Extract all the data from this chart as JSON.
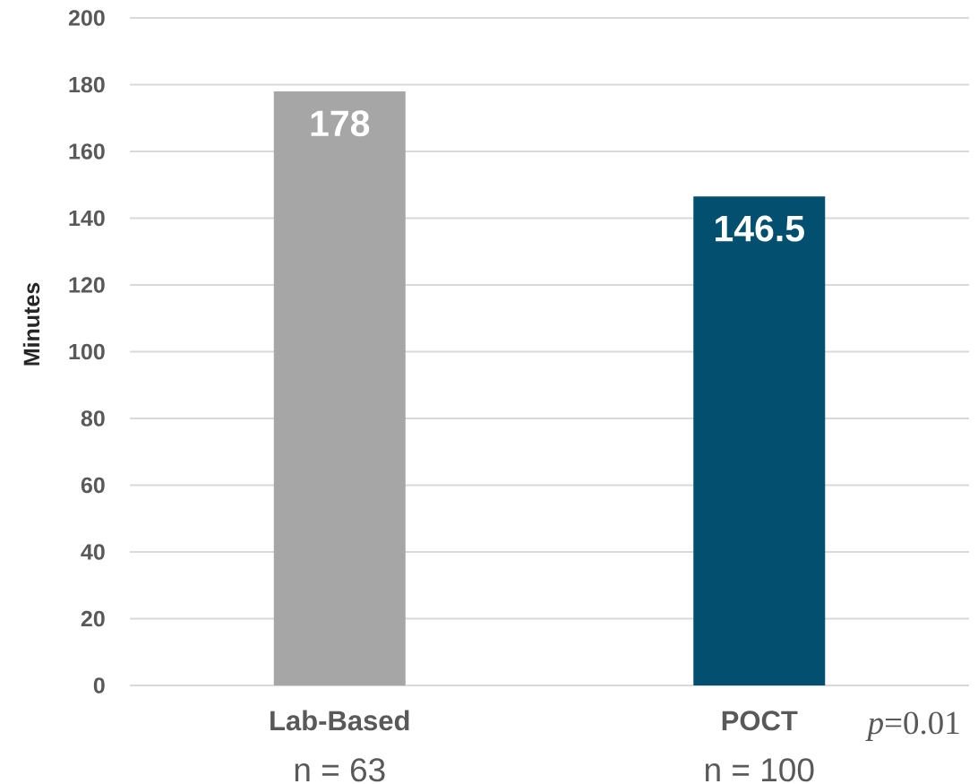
{
  "chart_data": {
    "type": "bar",
    "ylabel": "Minutes",
    "categories": [
      "Lab-Based",
      "POCT"
    ],
    "values": [
      178,
      146.5
    ],
    "colors": [
      "#a6a6a6",
      "#024f6f"
    ],
    "ylim": [
      0,
      200
    ],
    "yticks": [
      0,
      20,
      40,
      60,
      80,
      100,
      120,
      140,
      160,
      180,
      200
    ],
    "grid": "y",
    "data_labels": true,
    "annotations": [
      "n = 63",
      "n = 100",
      "*p*=0.01"
    ]
  }
}
